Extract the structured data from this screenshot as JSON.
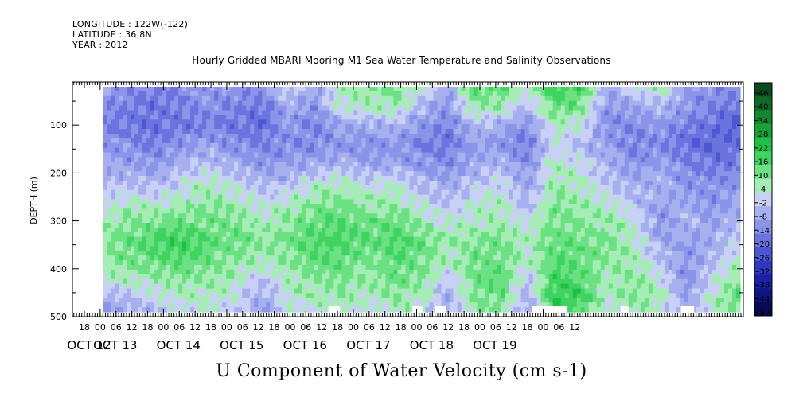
{
  "header": {
    "longitude": "LONGITUDE : 122W(-122)",
    "latitude": "LATITUDE : 36.8N",
    "year": "YEAR : 2012",
    "subtitle": "Hourly Gridded MBARI Mooring M1 Sea Water Temperature and Salinity Observations"
  },
  "chart_data": {
    "type": "heatmap",
    "title": "U Component of Water Velocity (cm s-1)",
    "ylabel": "DEPTH (m)",
    "ylim": [
      500,
      10
    ],
    "y_ticks": [
      "100",
      "200",
      "300",
      "400",
      "500"
    ],
    "y_tick_values": [
      100,
      200,
      300,
      400,
      500
    ],
    "x_hour_labels": [
      "18",
      "00",
      "06",
      "12",
      "18",
      "00",
      "06",
      "12",
      "18",
      "00",
      "06",
      "12",
      "18",
      "00",
      "06",
      "12",
      "18",
      "00",
      "06",
      "12",
      "18",
      "00",
      "06",
      "12",
      "18",
      "00",
      "06",
      "12",
      "18",
      "00",
      "06",
      "12"
    ],
    "x_day_labels": [
      "OCT 12",
      "OCT 13",
      "OCT 14",
      "OCT 15",
      "OCT 16",
      "OCT 17",
      "OCT 18",
      "OCT 19"
    ],
    "colorbar": {
      "labels": [
        "46",
        "40",
        "34",
        "28",
        "22",
        "16",
        "10",
        "4",
        "-2",
        "-8",
        "-14",
        "-20",
        "-26",
        "-32",
        "-38",
        "-44",
        "-50"
      ],
      "levels": [
        46,
        40,
        34,
        28,
        22,
        16,
        10,
        4,
        -2,
        -8,
        -14,
        -20,
        -26,
        -32,
        -38,
        -44,
        -50
      ],
      "colors_top_to_bottom": [
        "#0b4a1c",
        "#0f6a26",
        "#12872f",
        "#17a33a",
        "#1fc047",
        "#3fd45f",
        "#6be183",
        "#a5ecb5",
        "#c9d0f5",
        "#a6b0ee",
        "#8a94e8",
        "#6b74de",
        "#4e57d2",
        "#2e37c0",
        "#1a21a4",
        "#0e1482",
        "#070b55"
      ]
    },
    "depth_bands": [
      20,
      60,
      100,
      140,
      180,
      220,
      260,
      300,
      340,
      380,
      420,
      460,
      485
    ],
    "columns": [
      {
        "x": 0.0,
        "values": [
          -10,
          -12,
          -14,
          -10,
          -6,
          -4,
          2,
          6,
          10,
          8,
          4,
          -6,
          -8
        ]
      },
      {
        "x": 0.3,
        "values": [
          -12,
          -14,
          -16,
          -12,
          -8,
          -2,
          6,
          10,
          14,
          12,
          6,
          -4,
          -6
        ]
      },
      {
        "x": 0.6,
        "values": [
          -14,
          -16,
          -18,
          -14,
          -10,
          -4,
          4,
          12,
          18,
          14,
          8,
          2,
          -4
        ]
      },
      {
        "x": 0.9,
        "values": [
          -12,
          -14,
          -16,
          -10,
          -4,
          2,
          6,
          14,
          20,
          16,
          10,
          4,
          2
        ]
      },
      {
        "x": 1.2,
        "values": [
          -8,
          -12,
          -14,
          -8,
          -2,
          6,
          10,
          12,
          16,
          12,
          8,
          6,
          4
        ]
      },
      {
        "x": 1.5,
        "values": [
          -10,
          -14,
          -16,
          -12,
          -6,
          2,
          8,
          10,
          14,
          10,
          6,
          2,
          -2
        ]
      },
      {
        "x": 1.8,
        "values": [
          -12,
          -16,
          -18,
          -14,
          -10,
          -4,
          2,
          6,
          10,
          6,
          -2,
          -6,
          -8
        ]
      },
      {
        "x": 2.1,
        "values": [
          4,
          -6,
          -10,
          -12,
          -8,
          -2,
          6,
          10,
          12,
          10,
          6,
          4,
          2
        ]
      },
      {
        "x": 2.4,
        "values": [
          -8,
          -10,
          -14,
          -12,
          -6,
          4,
          10,
          14,
          18,
          14,
          10,
          6,
          4
        ]
      },
      {
        "x": 2.7,
        "values": [
          8,
          4,
          -8,
          -10,
          -4,
          6,
          12,
          16,
          18,
          14,
          12,
          8,
          6
        ]
      },
      {
        "x": 3.0,
        "values": [
          10,
          6,
          -6,
          -12,
          -8,
          2,
          8,
          12,
          14,
          10,
          8,
          4,
          2
        ]
      },
      {
        "x": 3.3,
        "values": [
          12,
          8,
          -4,
          -10,
          -6,
          4,
          8,
          14,
          18,
          16,
          12,
          8,
          6
        ]
      },
      {
        "x": 3.6,
        "values": [
          6,
          -4,
          -10,
          -14,
          -10,
          -4,
          2,
          8,
          14,
          12,
          10,
          6,
          4
        ]
      },
      {
        "x": 3.9,
        "values": [
          -6,
          -10,
          -14,
          -16,
          -12,
          -6,
          -2,
          4,
          8,
          6,
          -2,
          -6,
          -8
        ]
      },
      {
        "x": 4.2,
        "values": [
          16,
          10,
          -4,
          -8,
          -6,
          -2,
          4,
          6,
          10,
          12,
          14,
          10,
          8
        ]
      },
      {
        "x": 4.5,
        "values": [
          14,
          8,
          -6,
          -10,
          -4,
          2,
          6,
          8,
          12,
          14,
          16,
          12,
          10
        ]
      },
      {
        "x": 4.8,
        "values": [
          8,
          -4,
          -10,
          -16,
          -12,
          -8,
          -4,
          2,
          6,
          4,
          -2,
          -6,
          -8
        ]
      },
      {
        "x": 5.1,
        "values": [
          20,
          14,
          6,
          2,
          6,
          8,
          10,
          12,
          14,
          16,
          18,
          22,
          16
        ]
      },
      {
        "x": 5.4,
        "values": [
          18,
          12,
          4,
          -4,
          2,
          6,
          8,
          10,
          12,
          14,
          16,
          20,
          14
        ]
      },
      {
        "x": 5.7,
        "values": [
          -6,
          -10,
          -12,
          -8,
          -4,
          -2,
          4,
          8,
          12,
          10,
          6,
          4,
          2
        ]
      },
      {
        "x": 6.0,
        "values": [
          4,
          -8,
          -12,
          -14,
          -10,
          -6,
          -2,
          4,
          6,
          8,
          10,
          12,
          8
        ]
      },
      {
        "x": 6.3,
        "values": [
          10,
          -4,
          -10,
          -12,
          -8,
          -4,
          -8,
          -10,
          -6,
          -2,
          4,
          6,
          4
        ]
      },
      {
        "x": 6.6,
        "values": [
          -8,
          -10,
          -14,
          -18,
          -14,
          -10,
          -6,
          -4,
          -8,
          -10,
          -12,
          -8,
          -6
        ]
      },
      {
        "x": 6.9,
        "values": [
          -10,
          -14,
          -18,
          -20,
          -16,
          -12,
          -10,
          -8,
          -6,
          -4,
          2,
          6,
          4
        ]
      },
      {
        "x": 7.2,
        "values": [
          -12,
          -16,
          -20,
          -18,
          -14,
          -10,
          -6,
          -4,
          2,
          6,
          10,
          14,
          10
        ]
      }
    ],
    "gaps": [
      {
        "x": 2.55,
        "width": 0.13
      },
      {
        "x": 3.5,
        "width": 0.12
      },
      {
        "x": 3.75,
        "width": 0.13
      },
      {
        "x": 4.85,
        "width": 0.38
      },
      {
        "x": 5.2,
        "width": 0.05
      },
      {
        "x": 5.85,
        "width": 0.09
      },
      {
        "x": 6.53,
        "width": 0.15
      }
    ]
  }
}
